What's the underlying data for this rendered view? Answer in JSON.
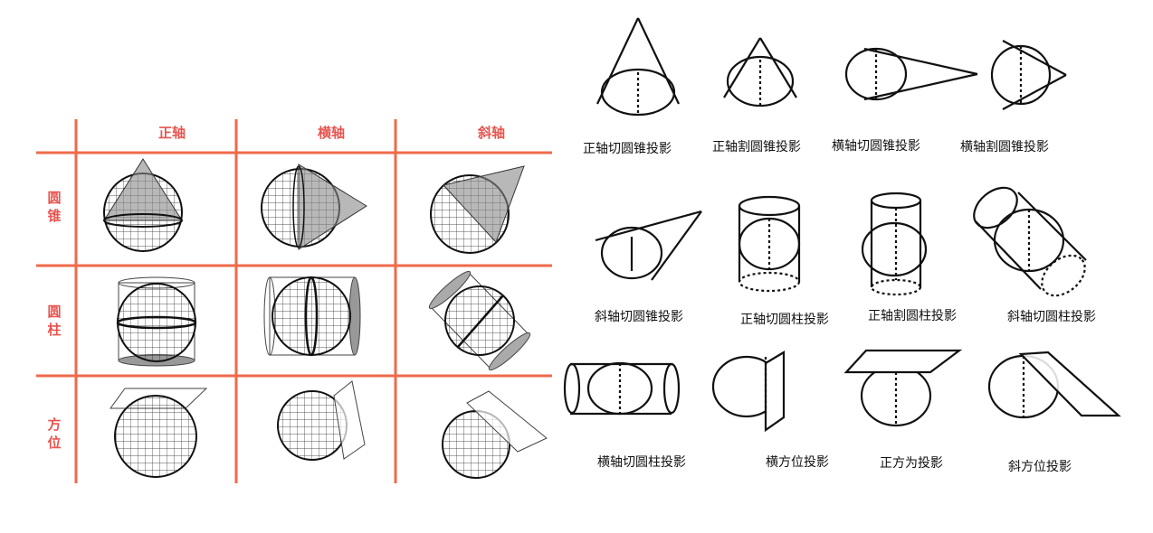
{
  "table": {
    "col_headers": [
      "正轴",
      "横轴",
      "斜轴"
    ],
    "row_headers": [
      {
        "line1": "圆",
        "line2": "锥"
      },
      {
        "line1": "圆",
        "line2": "柱"
      },
      {
        "line1": "方",
        "line2": "位"
      }
    ],
    "grid_color": "#ee6a4a"
  },
  "captions": [
    "正轴切圆锥投影",
    "正轴割圆锥投影",
    "横轴切圆锥投影",
    "横轴割圆锥投影",
    "斜轴切圆锥投影",
    "正轴切圆柱投影",
    "正轴割圆柱投影",
    "斜轴切圆柱投影",
    "横轴切圆柱投影",
    "横方位投影",
    "正方为投影",
    "斜方位投影"
  ]
}
